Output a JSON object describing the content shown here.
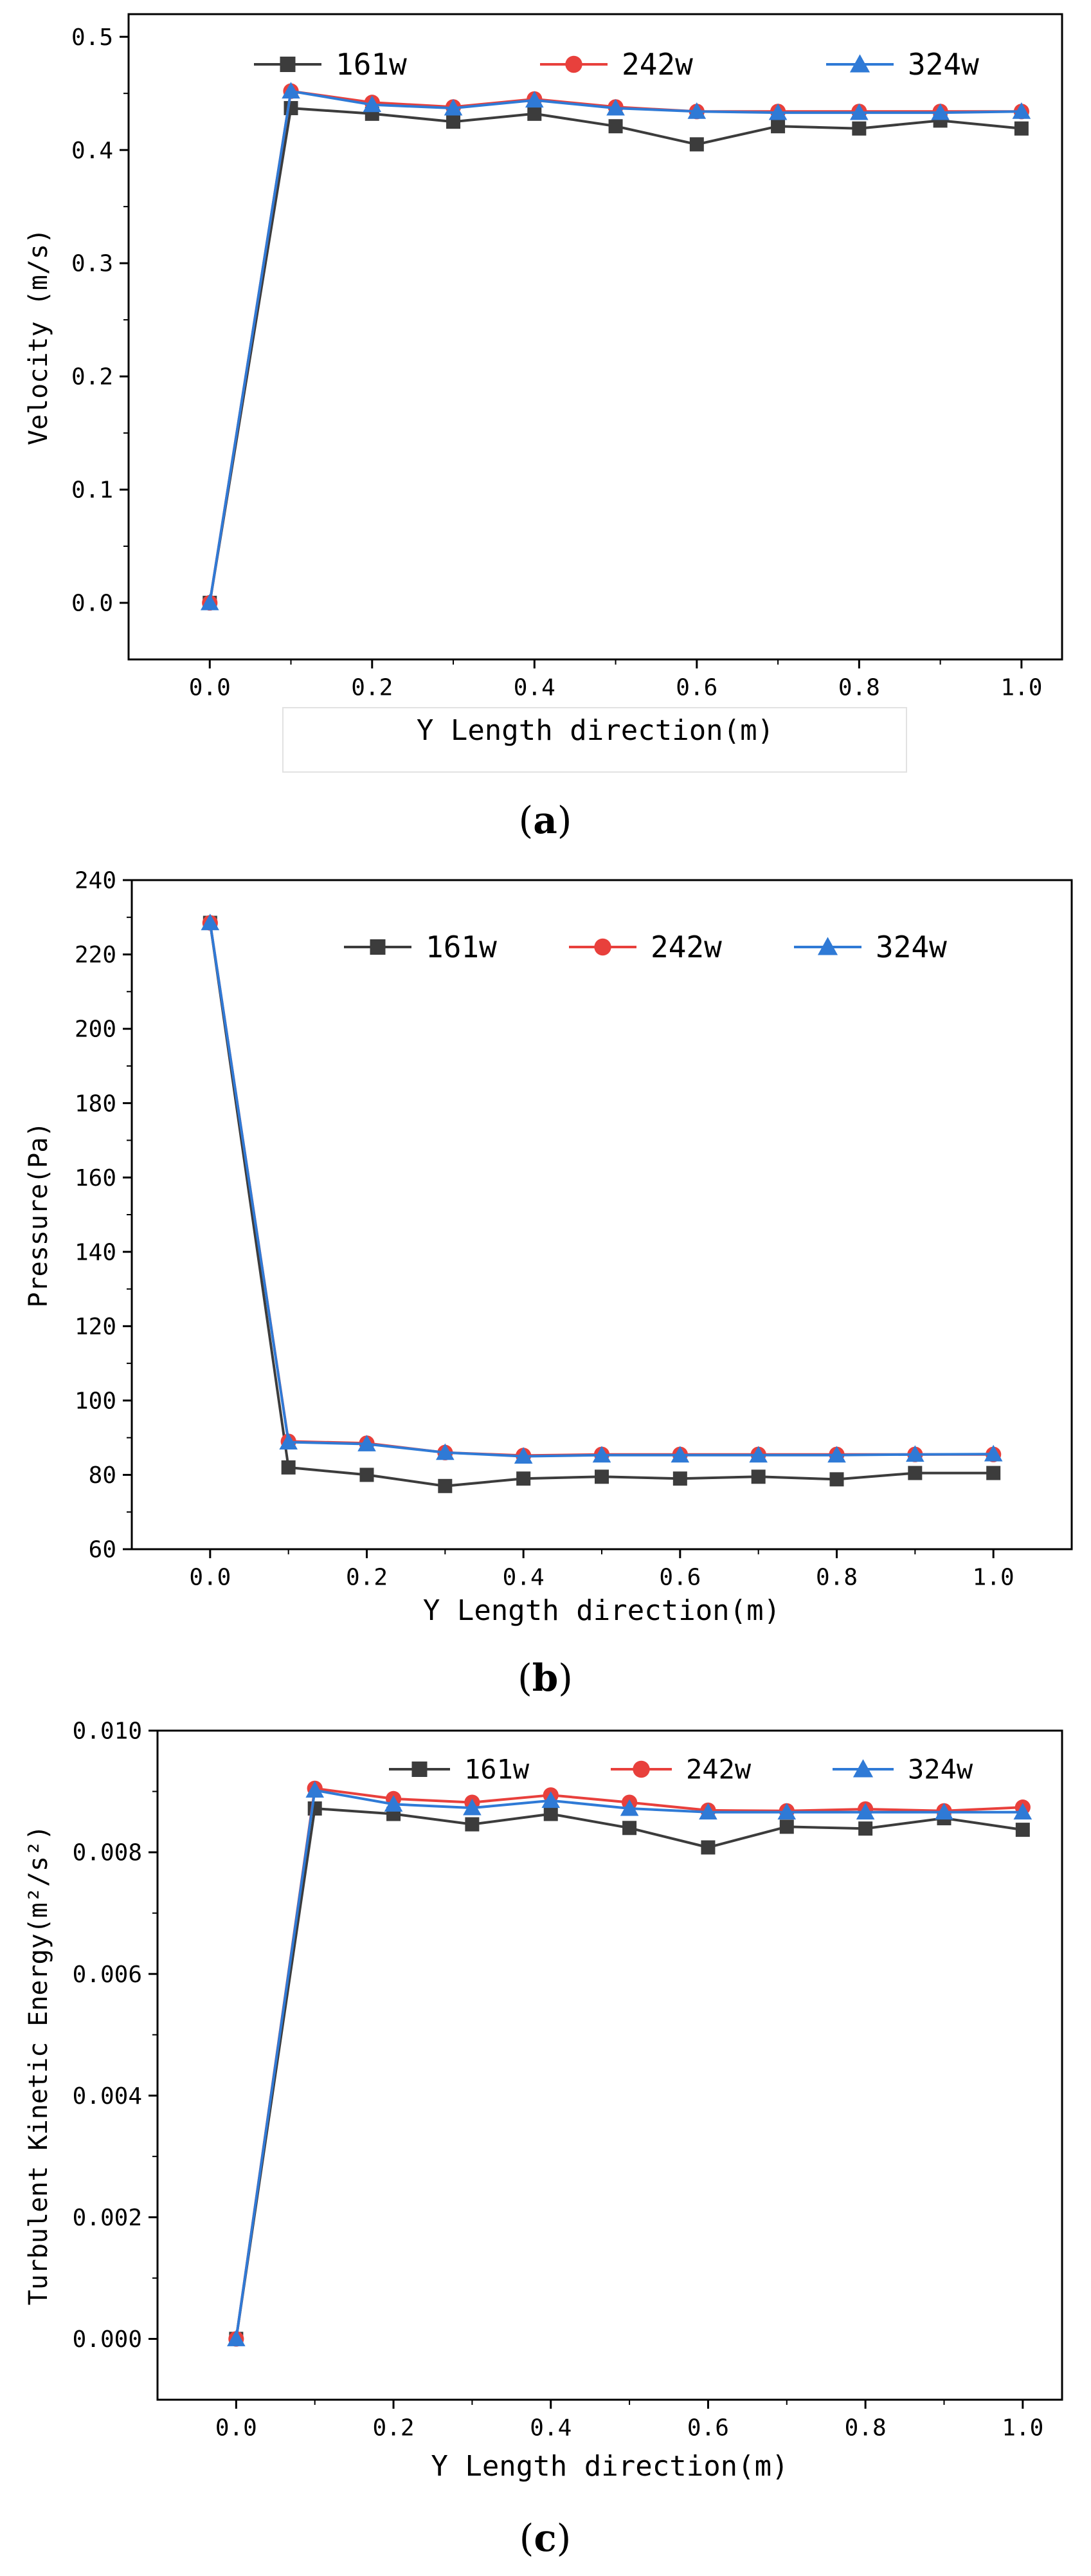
{
  "colors": {
    "s161": "#3c3c3c",
    "s242": "#e8403c",
    "s324": "#2f7ad6"
  },
  "legend_labels": [
    "161w",
    "242w",
    "324w"
  ],
  "chart_data": [
    {
      "type": "line",
      "caption_letter": "a",
      "title": "",
      "xlabel": "Y Length direction(m)",
      "ylabel": "Velocity (m/s)",
      "xlim": [
        -0.1,
        1.05
      ],
      "ylim": [
        -0.05,
        0.52
      ],
      "xticks": [
        0.0,
        0.2,
        0.4,
        0.6,
        0.8,
        1.0
      ],
      "xtick_labels": [
        "0.0",
        "0.2",
        "0.4",
        "0.6",
        "0.8",
        "1.0"
      ],
      "yticks": [
        0.0,
        0.1,
        0.2,
        0.3,
        0.4,
        0.5
      ],
      "ytick_labels": [
        "0.0",
        "0.1",
        "0.2",
        "0.3",
        "0.4",
        "0.5"
      ],
      "x": [
        0.0,
        0.1,
        0.2,
        0.3,
        0.4,
        0.5,
        0.6,
        0.7,
        0.8,
        0.9,
        1.0
      ],
      "series": [
        {
          "name": "161w",
          "values": [
            0.0,
            0.437,
            0.432,
            0.425,
            0.432,
            0.421,
            0.405,
            0.421,
            0.419,
            0.426,
            0.419
          ]
        },
        {
          "name": "242w",
          "values": [
            0.0,
            0.452,
            0.442,
            0.438,
            0.445,
            0.438,
            0.434,
            0.434,
            0.434,
            0.434,
            0.434
          ]
        },
        {
          "name": "324w",
          "values": [
            0.0,
            0.452,
            0.44,
            0.437,
            0.444,
            0.437,
            0.434,
            0.433,
            0.433,
            0.433,
            0.434
          ]
        }
      ]
    },
    {
      "type": "line",
      "caption_letter": "b",
      "title": "",
      "xlabel": "Y Length direction(m)",
      "ylabel": "Pressure(Pa)",
      "xlim": [
        -0.1,
        1.1
      ],
      "ylim": [
        60,
        240
      ],
      "xticks": [
        0.0,
        0.2,
        0.4,
        0.6,
        0.8,
        1.0
      ],
      "xtick_labels": [
        "0.0",
        "0.2",
        "0.4",
        "0.6",
        "0.8",
        "1.0"
      ],
      "yticks": [
        60,
        80,
        100,
        120,
        140,
        160,
        180,
        200,
        220,
        240
      ],
      "ytick_labels": [
        "60",
        "80",
        "100",
        "120",
        "140",
        "160",
        "180",
        "200",
        "220",
        "240"
      ],
      "x": [
        0.0,
        0.1,
        0.2,
        0.3,
        0.4,
        0.5,
        0.6,
        0.7,
        0.8,
        0.9,
        1.0
      ],
      "series": [
        {
          "name": "161w",
          "values": [
            228.5,
            82.0,
            80.0,
            77.0,
            79.0,
            79.5,
            79.0,
            79.5,
            78.8,
            80.5,
            80.5
          ]
        },
        {
          "name": "242w",
          "values": [
            228.5,
            89.0,
            88.5,
            86.0,
            85.2,
            85.5,
            85.5,
            85.5,
            85.5,
            85.5,
            85.5
          ]
        },
        {
          "name": "324w",
          "values": [
            228.5,
            88.8,
            88.3,
            86.0,
            85.0,
            85.3,
            85.3,
            85.3,
            85.3,
            85.5,
            85.6
          ]
        }
      ]
    },
    {
      "type": "line",
      "caption_letter": "c",
      "title": "",
      "xlabel": "Y Length direction(m)",
      "ylabel": "Turbulent Kinetic Energy(m²/s²)",
      "xlim": [
        -0.1,
        1.05
      ],
      "ylim": [
        -0.001,
        0.01
      ],
      "xticks": [
        0.0,
        0.2,
        0.4,
        0.6,
        0.8,
        1.0
      ],
      "xtick_labels": [
        "0.0",
        "0.2",
        "0.4",
        "0.6",
        "0.8",
        "1.0"
      ],
      "yticks": [
        0.0,
        0.002,
        0.004,
        0.006,
        0.008,
        0.01
      ],
      "ytick_labels": [
        "0.000",
        "0.002",
        "0.004",
        "0.006",
        "0.008",
        "0.010"
      ],
      "x": [
        0.0,
        0.1,
        0.2,
        0.3,
        0.4,
        0.5,
        0.6,
        0.7,
        0.8,
        0.9,
        1.0
      ],
      "series": [
        {
          "name": "161w",
          "values": [
            0.0,
            0.00872,
            0.00863,
            0.00846,
            0.00863,
            0.0084,
            0.00808,
            0.00842,
            0.00839,
            0.00856,
            0.00837
          ]
        },
        {
          "name": "242w",
          "values": [
            0.0,
            0.00905,
            0.00888,
            0.00882,
            0.00894,
            0.00882,
            0.00869,
            0.00868,
            0.00871,
            0.00868,
            0.00874
          ]
        },
        {
          "name": "324w",
          "values": [
            0.0,
            0.00902,
            0.00879,
            0.00873,
            0.00885,
            0.00872,
            0.00866,
            0.00866,
            0.00866,
            0.00866,
            0.00866
          ]
        }
      ]
    }
  ]
}
